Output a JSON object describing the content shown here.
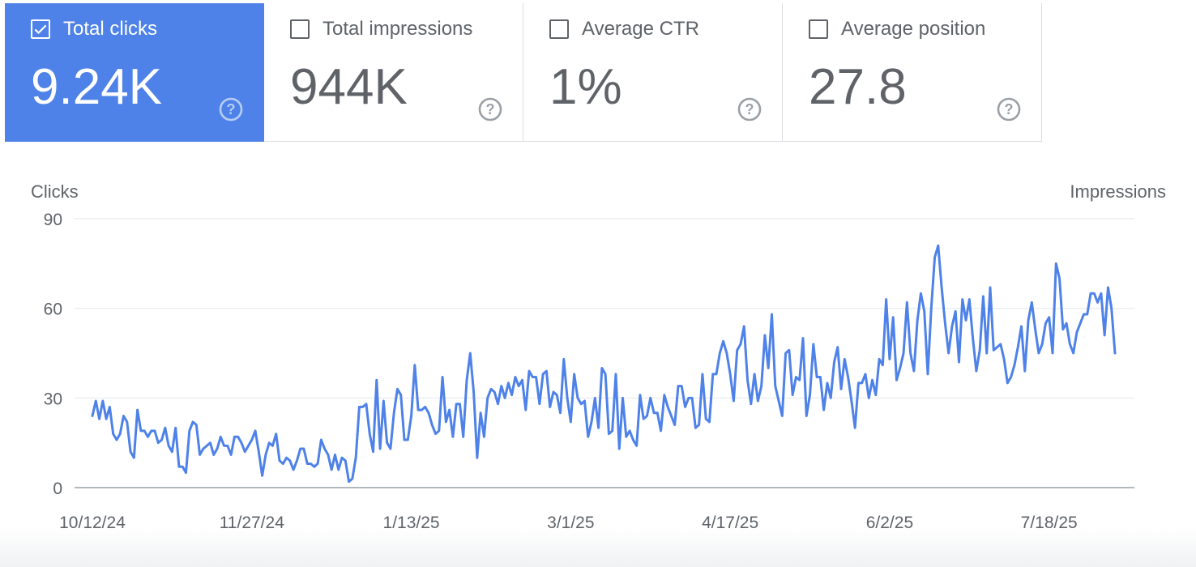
{
  "colors": {
    "accent": "#4e82e8",
    "line": "#4e82e8",
    "grid": "#e8eaed",
    "text": "#5f6368"
  },
  "metrics": [
    {
      "label": "Total clicks",
      "value": "9.24K",
      "checked": true
    },
    {
      "label": "Total impressions",
      "value": "944K",
      "checked": false
    },
    {
      "label": "Average CTR",
      "value": "1%",
      "checked": false
    },
    {
      "label": "Average position",
      "value": "27.8",
      "checked": false
    }
  ],
  "icons": {
    "help": "help-circle-icon",
    "check": "check-icon"
  },
  "chart_data": {
    "type": "line",
    "title": "",
    "ylabel": "Clicks",
    "y2label": "Impressions",
    "ylim": [
      0,
      90
    ],
    "yticks": [
      "0",
      "30",
      "60",
      "90"
    ],
    "xticks": [
      "10/12/24",
      "11/27/24",
      "1/13/25",
      "3/1/25",
      "4/17/25",
      "6/2/25",
      "7/18/25"
    ],
    "x_start": "10/12/24",
    "grid": true,
    "series": [
      {
        "name": "Clicks",
        "values": [
          24,
          29,
          23,
          29,
          23,
          27,
          18,
          16,
          18,
          24,
          22,
          12,
          10,
          26,
          19,
          19,
          17,
          19,
          19,
          15,
          16,
          20,
          14,
          12,
          20,
          7,
          7,
          5,
          19,
          22,
          21,
          11,
          13,
          14,
          15,
          11,
          13,
          17,
          14,
          14,
          11,
          17,
          17,
          15,
          12,
          14,
          16,
          19,
          12,
          4,
          11,
          15,
          14,
          18,
          9,
          8,
          10,
          9,
          6,
          9,
          13,
          13,
          8,
          8,
          7,
          8,
          16,
          13,
          11,
          6,
          11,
          6,
          10,
          9,
          2,
          3,
          10,
          27,
          27,
          28,
          18,
          12,
          36,
          13,
          29,
          15,
          13,
          25,
          33,
          31,
          16,
          16,
          24,
          41,
          26,
          26,
          27,
          25,
          21,
          18,
          19,
          37,
          22,
          26,
          17,
          28,
          28,
          17,
          36,
          45,
          32,
          10,
          25,
          17,
          30,
          33,
          32,
          28,
          34,
          30,
          35,
          31,
          37,
          34,
          36,
          26,
          39,
          37,
          37,
          28,
          38,
          39,
          27,
          32,
          31,
          25,
          43,
          30,
          22,
          38,
          30,
          28,
          29,
          17,
          22,
          30,
          20,
          40,
          38,
          18,
          19,
          38,
          13,
          30,
          17,
          19,
          16,
          14,
          31,
          23,
          24,
          30,
          25,
          25,
          19,
          31,
          27,
          24,
          21,
          34,
          34,
          27,
          30,
          30,
          20,
          21,
          38,
          23,
          22,
          38,
          38,
          45,
          49,
          45,
          38,
          29,
          46,
          48,
          54,
          36,
          28,
          38,
          29,
          34,
          51,
          40,
          58,
          34,
          29,
          24,
          45,
          46,
          31,
          37,
          36,
          50,
          24,
          31,
          48,
          37,
          37,
          26,
          35,
          30,
          42,
          47,
          33,
          43,
          37,
          29,
          20,
          35,
          35,
          38,
          30,
          36,
          31,
          43,
          41,
          63,
          43,
          57,
          36,
          40,
          45,
          62,
          45,
          39,
          56,
          65,
          59,
          38,
          60,
          77,
          81,
          67,
          55,
          45,
          54,
          59,
          42,
          63,
          56,
          63,
          50,
          39,
          46,
          64,
          45,
          67,
          46,
          47,
          48,
          43,
          35,
          37,
          41,
          47,
          54,
          39,
          56,
          62,
          53,
          45,
          48,
          55,
          57,
          45,
          75,
          70,
          53,
          55,
          48,
          45,
          52,
          55,
          58,
          58,
          65,
          65,
          62,
          65,
          51,
          67,
          60,
          45
        ]
      }
    ]
  }
}
